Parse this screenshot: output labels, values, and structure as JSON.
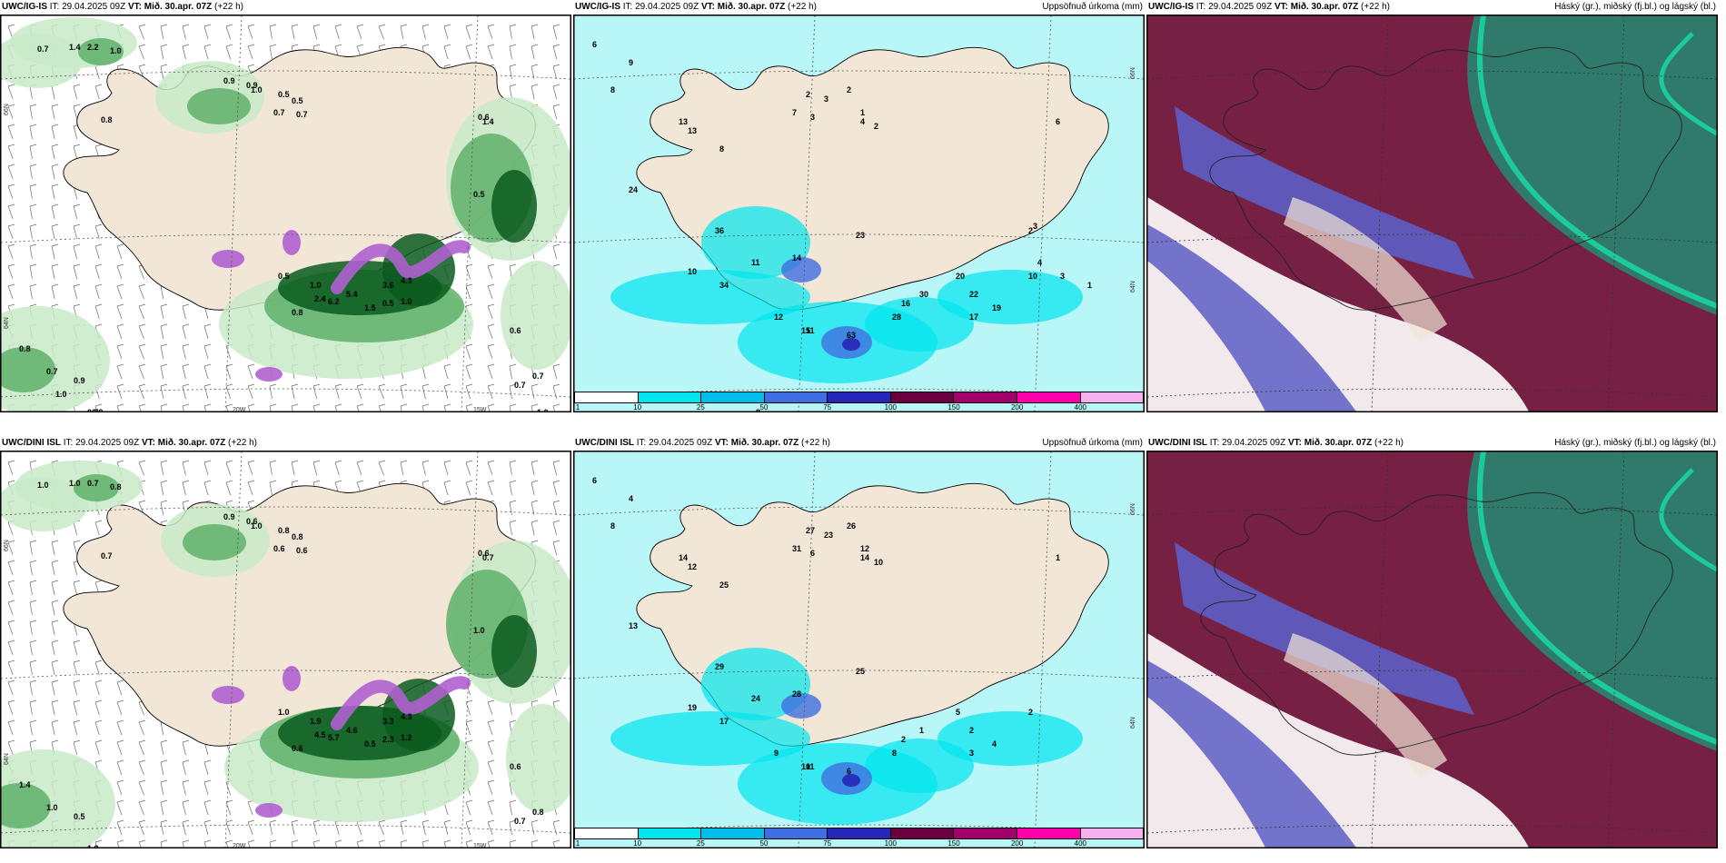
{
  "panels": [
    {
      "model": "UWC/IG-IS",
      "it_label": "IT: 29.04.2025 09Z",
      "vt_prefix": "VT:",
      "vt_value": "Mið. 30.apr. 07Z",
      "lead": "(+22 h)",
      "right_label": "",
      "type": "precip-rate-wind",
      "colorbar": null,
      "values": [
        "0.7",
        "1.4",
        "2.2",
        "1.0",
        "0.9",
        "0.5",
        "0.7",
        "0.8",
        "1.0",
        "0.9",
        "0.5",
        "0.7",
        "1.4",
        "0.5",
        "0.6",
        "0.5",
        "1.5",
        "0.5",
        "1.0",
        "2.4",
        "6.2",
        "5.4",
        "3.6",
        "4.3",
        "1.0",
        "0.8",
        "0.8",
        "0.7",
        "0.9",
        "0.7",
        "0.6",
        "0.7",
        "0.7",
        "1.0",
        "0.9",
        "1.0"
      ],
      "axis_labels": [
        "66N",
        "64N",
        "20W",
        "15W"
      ]
    },
    {
      "model": "UWC/IG-IS",
      "it_label": "IT: 29.04.2025 09Z",
      "vt_prefix": "VT:",
      "vt_value": "Mið. 30.apr. 07Z",
      "lead": "(+22 h)",
      "right_label": "Uppsöfnuð úrkoma (mm)",
      "type": "accum-precip",
      "colorbar": {
        "colors": [
          "#ffffff",
          "#00e5ee",
          "#00bfe8",
          "#3f6fe0",
          "#2626b8",
          "#6a0040",
          "#a0006a",
          "#ff00aa",
          "#f5b0ee"
        ],
        "ticks": [
          "1",
          "10",
          "25",
          "50",
          "75",
          "100",
          "150",
          "200",
          "400"
        ]
      },
      "values": [
        "6",
        "9",
        "8",
        "13",
        "13",
        "8",
        "7",
        "2",
        "3",
        "4",
        "2",
        "1",
        "3",
        "2",
        "24",
        "36",
        "23",
        "14",
        "11",
        "10",
        "34",
        "12",
        "15",
        "11",
        "63",
        "28",
        "16",
        "30",
        "20",
        "22",
        "17",
        "19",
        "10",
        "6",
        "3",
        "2",
        "4",
        "3",
        "1",
        "8"
      ],
      "axis_labels": [
        "66N",
        "64N"
      ]
    },
    {
      "model": "UWC/IG-IS",
      "it_label": "IT: 29.04.2025 09Z",
      "vt_prefix": "VT:",
      "vt_value": "Mið. 30.apr. 07Z",
      "lead": "(+22 h)",
      "right_label": "Háský (gr.), miðský (fj.bl.) og lágský (bl.)",
      "type": "clouds",
      "colorbar": null,
      "values": [],
      "axis_labels": []
    },
    {
      "model": "UWC/DINI ISL",
      "it_label": "IT: 29.04.2025 09Z",
      "vt_prefix": "VT:",
      "vt_value": "Mið. 30.apr. 07Z",
      "lead": "(+22 h)",
      "right_label": "",
      "type": "precip-rate-wind",
      "colorbar": null,
      "values": [
        "1.0",
        "1.0",
        "0.7",
        "0.8",
        "0.6",
        "0.8",
        "0.6",
        "0.7",
        "1.0",
        "0.9",
        "0.8",
        "0.6",
        "0.7",
        "1.0",
        "0.6",
        "1.0",
        "0.5",
        "2.3",
        "1.2",
        "4.5",
        "5.7",
        "4.6",
        "3.3",
        "4.3",
        "1.9",
        "0.6",
        "1.4",
        "1.0",
        "0.5",
        "1.2",
        "0.6",
        "0.7",
        "0.8"
      ],
      "axis_labels": [
        "66N",
        "64N",
        "20W",
        "15W"
      ]
    },
    {
      "model": "UWC/DINI ISL",
      "it_label": "IT: 29.04.2025 09Z",
      "vt_prefix": "VT:",
      "vt_value": "Mið. 30.apr. 07Z",
      "lead": "(+22 h)",
      "right_label": "Uppsöfnuð úrkoma (mm)",
      "type": "accum-precip",
      "colorbar": {
        "colors": [
          "#ffffff",
          "#00e5ee",
          "#00bfe8",
          "#3f6fe0",
          "#2626b8",
          "#6a0040",
          "#a0006a",
          "#ff00aa",
          "#f5b0ee"
        ],
        "ticks": [
          "1",
          "10",
          "25",
          "50",
          "75",
          "100",
          "150",
          "200",
          "400"
        ]
      },
      "values": [
        "6",
        "4",
        "8",
        "14",
        "12",
        "25",
        "31",
        "27",
        "23",
        "14",
        "26",
        "12",
        "6",
        "10",
        "13",
        "29",
        "25",
        "28",
        "24",
        "19",
        "17",
        "9",
        "10",
        "11",
        "6",
        "8",
        "2",
        "1",
        "5",
        "2",
        "3",
        "4",
        "2",
        "1"
      ],
      "axis_labels": [
        "66N",
        "64N"
      ]
    },
    {
      "model": "UWC/DINI ISL",
      "it_label": "IT: 29.04.2025 09Z",
      "vt_prefix": "VT:",
      "vt_value": "Mið. 30.apr. 07Z",
      "lead": "(+22 h)",
      "right_label": "Háský (gr.), miðský (fj.bl.) og lágský (bl.)",
      "type": "clouds",
      "colorbar": null,
      "values": [],
      "axis_labels": []
    }
  ],
  "colors": {
    "land": "#f2e6d6",
    "precip_light": "#c8eac8",
    "precip_mid": "#5fb06a",
    "precip_dark": "#0a5a1e",
    "precip_purple": "#b060d0",
    "accum_light": "#b8f6f8",
    "accum_mid": "#00e5ee",
    "cloud_high": "#7a1b42",
    "cloud_mid": "#5e5ec6",
    "cloud_low": "#2f7a6a",
    "cloud_edge": "#19e0a6"
  }
}
